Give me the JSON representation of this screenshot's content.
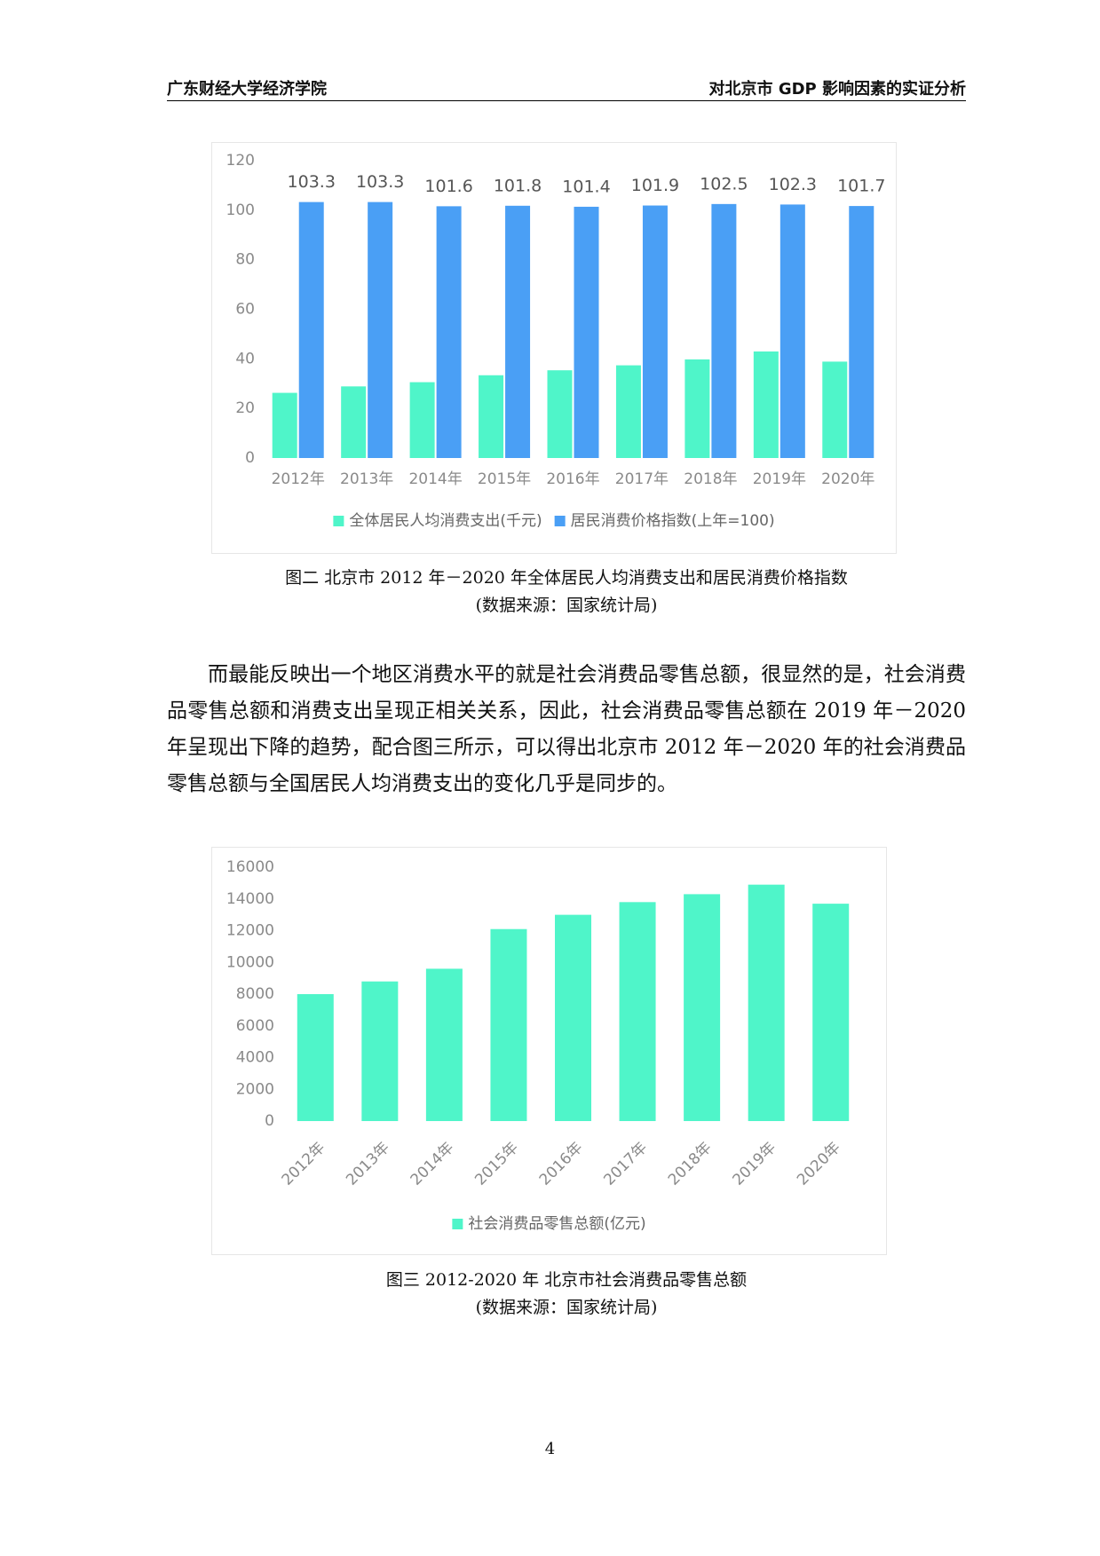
{
  "header": {
    "left": "广东财经大学经济学院",
    "right": "对北京市 GDP 影响因素的实证分析"
  },
  "figures": [
    {
      "chart_data": {
        "type": "bar",
        "categories": [
          "2012年",
          "2013年",
          "2014年",
          "2015年",
          "2016年",
          "2017年",
          "2018年",
          "2019年",
          "2020年"
        ],
        "series": [
          {
            "name": "全体居民人均消费支出(千元)",
            "color": "#4ff5c9",
            "values": [
              26.3,
              28.9,
              30.6,
              33.4,
              35.4,
              37.4,
              39.8,
              43.0,
              38.9
            ]
          },
          {
            "name": "居民消费价格指数(上年=100)",
            "color": "#4a9ff5",
            "values": [
              103.3,
              103.3,
              101.6,
              101.8,
              101.4,
              101.9,
              102.5,
              102.3,
              101.7
            ],
            "data_labels": true
          }
        ],
        "ylim": [
          0,
          120
        ],
        "yticks": [
          0,
          20,
          40,
          60,
          80,
          100,
          120
        ],
        "grid": false,
        "legend": "bottom"
      },
      "caption": [
        "图二  北京市 2012 年－2020 年全体居民人均消费支出和居民消费价格指数",
        "(数据来源：国家统计局)"
      ]
    },
    {
      "chart_data": {
        "type": "bar",
        "categories": [
          "2012年",
          "2013年",
          "2014年",
          "2015年",
          "2016年",
          "2017年",
          "2018年",
          "2019年",
          "2020年"
        ],
        "series": [
          {
            "name": "社会消费品零售总额(亿元)",
            "color": "#4ff5c9",
            "values": [
              8000,
              8800,
              9600,
              12100,
              13000,
              13800,
              14300,
              14900,
              13700
            ]
          }
        ],
        "ylim": [
          0,
          16000
        ],
        "yticks": [
          0,
          2000,
          4000,
          6000,
          8000,
          10000,
          12000,
          14000,
          16000
        ],
        "grid": false,
        "legend": "bottom",
        "rotated_labels": true
      },
      "caption": [
        "图三   2012-2020 年  北京市社会消费品零售总额",
        "(数据来源：国家统计局)"
      ]
    }
  ],
  "paragraph": "而最能反映出一个地区消费水平的就是社会消费品零售总额，很显然的是，社会消费品零售总额和消费支出呈现正相关关系，因此，社会消费品零售总额在 2019 年－2020 年呈现出下降的趋势，配合图三所示，可以得出北京市 2012 年－2020 年的社会消费品零售总额与全国居民人均消费支出的变化几乎是同步的。",
  "page_number": "4"
}
